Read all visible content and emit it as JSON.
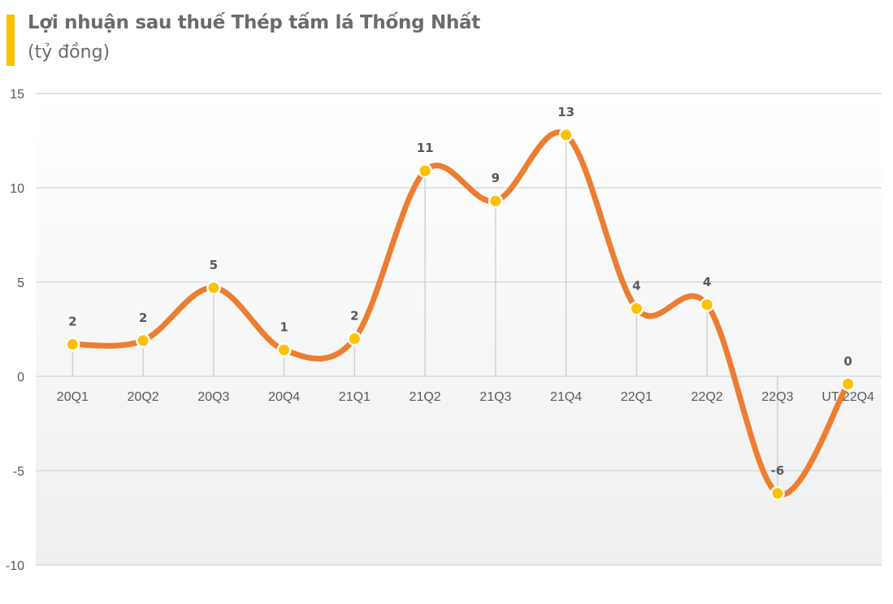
{
  "header": {
    "title": "Lợi nhuận sau thuế Thép tấm lá Thống Nhất",
    "subtitle": "(tỷ đồng)",
    "accent_color": "#FFC000"
  },
  "chart_data": {
    "type": "line",
    "title": "Lợi nhuận sau thuế Thép tấm lá Thống Nhất",
    "subtitle": "(tỷ đồng)",
    "xlabel": "",
    "ylabel": "tỷ đồng",
    "categories": [
      "20Q1",
      "20Q2",
      "20Q3",
      "20Q4",
      "21Q1",
      "21Q2",
      "21Q3",
      "21Q4",
      "22Q1",
      "22Q2",
      "22Q3",
      "UT 22Q4"
    ],
    "series": [
      {
        "name": "Lợi nhuận sau thuế",
        "values": [
          1.7,
          1.9,
          4.7,
          1.4,
          2.0,
          10.9,
          9.3,
          12.8,
          3.6,
          3.8,
          -6.2,
          -0.4
        ],
        "data_labels": [
          "2",
          "2",
          "5",
          "1",
          "2",
          "11",
          "9",
          "13",
          "4",
          "4",
          "-6",
          "0"
        ],
        "line_color": "#ED7D31",
        "marker_color": "#FFC000",
        "smooth": true
      }
    ],
    "yticks": [
      15,
      10,
      5,
      0,
      -5,
      -10
    ],
    "ylim": [
      -10,
      15
    ],
    "grid": true,
    "drop_lines": true,
    "legend": "none"
  }
}
